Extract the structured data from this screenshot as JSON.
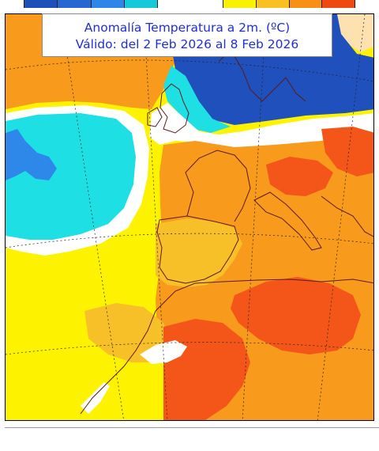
{
  "title": {
    "line1": "Anomalía Temperatura a 2m. (ºC)",
    "line2": "Válido: del 2 Feb 2026 al 8 Feb 2026"
  },
  "legend": {
    "cold_colors": [
      "#1f4fb8",
      "#2667d4",
      "#2e86e8",
      "#16c8dc"
    ],
    "warm_colors": [
      "#f8f200",
      "#f8c020",
      "#f89016",
      "#ee4a10"
    ]
  },
  "colors": {
    "cyan": "#1ee0e4",
    "blue": "#2d88ea",
    "dark_blue": "#1f50bc",
    "yellow": "#fdf300",
    "light_orange": "#f8c028",
    "orange": "#f89a1c",
    "red_orange": "#f4561a",
    "peach": "#fde2b0",
    "white": "#ffffff"
  }
}
